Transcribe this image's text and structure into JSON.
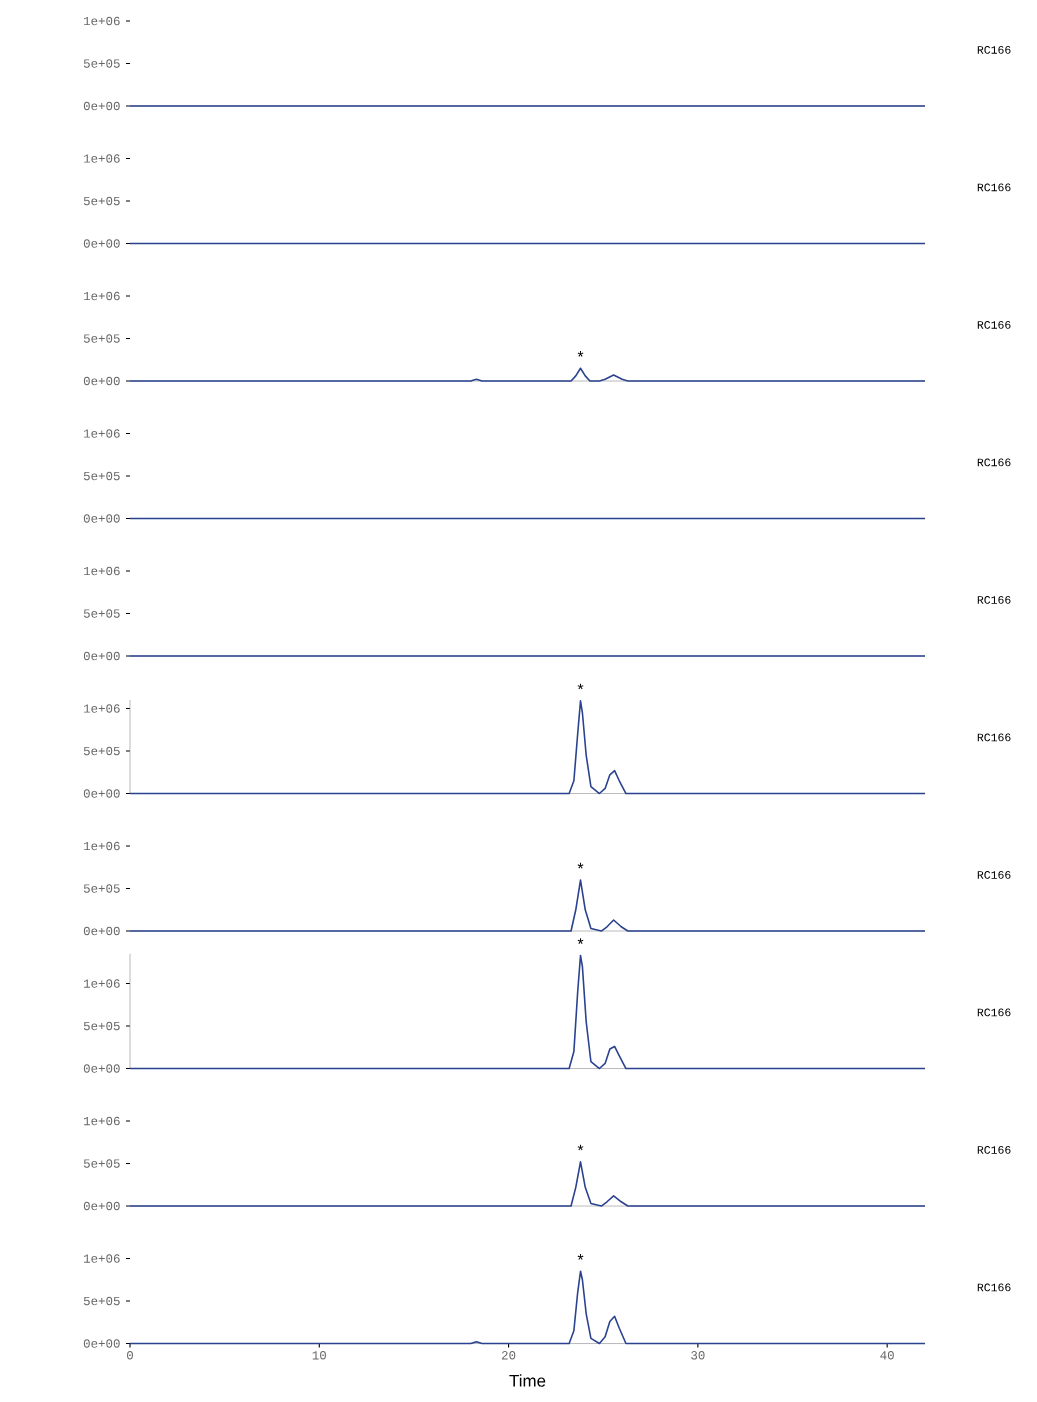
{
  "chart_data": [
    {
      "type": "line",
      "y2label": "RC166",
      "x": [
        0,
        42
      ],
      "values": [
        0,
        0
      ],
      "color": "#2a428f",
      "xlim": [
        0,
        42
      ],
      "ylim": [
        0,
        1000000
      ],
      "yticks": [
        {
          "value": 0,
          "label": "0e+00"
        },
        {
          "value": 500000,
          "label": "5e+05"
        },
        {
          "value": 1000000,
          "label": "1e+06"
        }
      ],
      "tick_labels": "y"
    },
    {
      "type": "line",
      "y2label": "RC166",
      "x": [
        0,
        42
      ],
      "values": [
        0,
        0
      ],
      "color": "#2a428f",
      "xlim": [
        0,
        42
      ],
      "ylim": [
        0,
        1000000
      ],
      "yticks": [
        {
          "value": 0,
          "label": "0e+00"
        },
        {
          "value": 500000,
          "label": "5e+05"
        },
        {
          "value": 1000000,
          "label": "1e+06"
        }
      ],
      "tick_labels": "y"
    },
    {
      "type": "line",
      "y2label": "RC166",
      "xlim": [
        0,
        42
      ],
      "x": [
        0,
        18.0,
        18.3,
        18.6,
        23.3,
        23.55,
        23.8,
        24.05,
        24.3,
        24.8,
        25.1,
        25.55,
        26.0,
        26.3,
        42
      ],
      "values": [
        0,
        0,
        20000,
        0,
        0,
        60000,
        150000,
        60000,
        0,
        0,
        20000,
        70000,
        20000,
        0,
        0
      ],
      "color": "#2a428f",
      "ylim": [
        0,
        1000000
      ],
      "yticks": [
        {
          "value": 0,
          "label": "0e+00"
        },
        {
          "value": 500000,
          "label": "5e+05"
        },
        {
          "value": 1000000,
          "label": "1e+06"
        }
      ],
      "tick_labels": "y",
      "annotations": [
        "*"
      ]
    },
    {
      "type": "line",
      "y2label": "RC166",
      "x": [
        0,
        42
      ],
      "values": [
        0,
        0
      ],
      "color": "#2a428f",
      "xlim": [
        0,
        42
      ],
      "ylim": [
        0,
        1000000
      ],
      "yticks": [
        {
          "value": 0,
          "label": "0e+00"
        },
        {
          "value": 500000,
          "label": "5e+05"
        },
        {
          "value": 1000000,
          "label": "1e+06"
        }
      ],
      "tick_labels": "y"
    },
    {
      "type": "line",
      "y2label": "RC166",
      "x": [
        0,
        42
      ],
      "values": [
        0,
        0
      ],
      "color": "#2a428f",
      "xlim": [
        0,
        42
      ],
      "ylim": [
        0,
        1000000
      ],
      "yticks": [
        {
          "value": 0,
          "label": "0e+00"
        },
        {
          "value": 500000,
          "label": "5e+05"
        },
        {
          "value": 1000000,
          "label": "1e+06"
        }
      ],
      "tick_labels": "y"
    },
    {
      "type": "line",
      "y2label": "RC166",
      "xlim": [
        0,
        42
      ],
      "x": [
        0,
        23.2,
        23.45,
        23.65,
        23.8,
        23.9,
        24.1,
        24.35,
        24.8,
        25.1,
        25.35,
        25.6,
        25.85,
        26.2,
        42
      ],
      "values": [
        0,
        0,
        150000,
        700000,
        1090000,
        950000,
        450000,
        80000,
        0,
        60000,
        220000,
        270000,
        150000,
        0,
        0
      ],
      "color": "#2a428f",
      "ylim": [
        0,
        1100000
      ],
      "yticks": [
        {
          "value": 0,
          "label": "0e+00"
        },
        {
          "value": 500000,
          "label": "5e+05"
        },
        {
          "value": 1000000,
          "label": "1e+06"
        }
      ],
      "tick_labels": "y",
      "annotations": [
        "*"
      ]
    },
    {
      "type": "line",
      "y2label": "RC166",
      "xlim": [
        0,
        42
      ],
      "x": [
        0,
        23.3,
        23.55,
        23.8,
        24.05,
        24.35,
        24.9,
        25.2,
        25.55,
        25.95,
        26.3,
        42
      ],
      "values": [
        0,
        0,
        250000,
        600000,
        250000,
        30000,
        0,
        50000,
        130000,
        50000,
        0,
        0
      ],
      "color": "#2a428f",
      "ylim": [
        0,
        1000000
      ],
      "yticks": [
        {
          "value": 0,
          "label": "0e+00"
        },
        {
          "value": 500000,
          "label": "5e+05"
        },
        {
          "value": 1000000,
          "label": "1e+06"
        }
      ],
      "tick_labels": "y",
      "annotations": [
        "*"
      ]
    },
    {
      "type": "line",
      "y2label": "RC166",
      "xlim": [
        0,
        42
      ],
      "x": [
        0,
        23.2,
        23.45,
        23.65,
        23.8,
        23.9,
        24.1,
        24.35,
        24.8,
        25.1,
        25.35,
        25.6,
        25.85,
        26.2,
        42
      ],
      "values": [
        0,
        0,
        200000,
        900000,
        1330000,
        1200000,
        550000,
        80000,
        0,
        60000,
        230000,
        260000,
        150000,
        0,
        0
      ],
      "color": "#2a428f",
      "ylim": [
        0,
        1350000
      ],
      "yticks": [
        {
          "value": 0,
          "label": "0e+00"
        },
        {
          "value": 500000,
          "label": "5e+05"
        },
        {
          "value": 1000000,
          "label": "1e+06"
        }
      ],
      "tick_labels": "y",
      "annotations": [
        "*"
      ]
    },
    {
      "type": "line",
      "y2label": "RC166",
      "xlim": [
        0,
        42
      ],
      "x": [
        0,
        23.3,
        23.55,
        23.8,
        24.05,
        24.35,
        24.9,
        25.2,
        25.55,
        25.95,
        26.3,
        42
      ],
      "values": [
        0,
        0,
        220000,
        520000,
        220000,
        30000,
        0,
        50000,
        120000,
        50000,
        0,
        0
      ],
      "color": "#2a428f",
      "ylim": [
        0,
        1000000
      ],
      "yticks": [
        {
          "value": 0,
          "label": "0e+00"
        },
        {
          "value": 500000,
          "label": "5e+05"
        },
        {
          "value": 1000000,
          "label": "1e+06"
        }
      ],
      "tick_labels": "y",
      "annotations": [
        "*"
      ]
    },
    {
      "type": "line",
      "y2label": "RC166",
      "xlabel": "Time",
      "x": [
        0,
        18.0,
        18.3,
        18.6,
        23.2,
        23.45,
        23.65,
        23.8,
        23.9,
        24.1,
        24.35,
        24.8,
        25.1,
        25.35,
        25.6,
        25.85,
        26.2,
        42
      ],
      "values": [
        0,
        0,
        20000,
        0,
        0,
        150000,
        600000,
        850000,
        750000,
        350000,
        60000,
        0,
        80000,
        260000,
        320000,
        180000,
        0,
        0
      ],
      "color": "#2a428f",
      "xlim": [
        0,
        42
      ],
      "ylim": [
        0,
        1000000
      ],
      "xticks": [
        0,
        10,
        20,
        30,
        40
      ],
      "yticks": [
        {
          "value": 0,
          "label": "0e+00"
        },
        {
          "value": 500000,
          "label": "5e+05"
        },
        {
          "value": 1000000,
          "label": "1e+06"
        }
      ],
      "annotations": [
        "*"
      ]
    }
  ]
}
